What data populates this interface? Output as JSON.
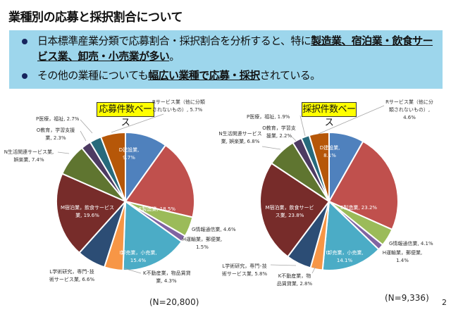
{
  "title": "業種別の応募と採択割合について",
  "summary": {
    "bullets": [
      {
        "plain1": "日本標準産業分類で応募割合・採択割合を分析すると、特に",
        "bold": "製造業、宿泊業・飲食サービス業、卸売・小売業が多い",
        "plain2": "。"
      },
      {
        "plain1": "その他の業種についても",
        "bold": "幅広い業種で応募・採択",
        "plain2": "されている。"
      }
    ]
  },
  "colors": {
    "D": "#4F81BD",
    "E": "#C0504D",
    "G": "#9BBB59",
    "H": "#8064A2",
    "I": "#4BACC6",
    "K": "#F79646",
    "L": "#2C4D75",
    "M": "#772C2A",
    "N": "#5F7530",
    "O": "#4D3B62",
    "P": "#276A7C",
    "R": "#B65708",
    "summary_bg": "#9dd6ec",
    "badge_bg": "#ffff00"
  },
  "chart_data": [
    {
      "type": "pie",
      "title": "応募件数ベース",
      "n_label": "(N=20,800)",
      "start": "top",
      "direction": "clockwise",
      "slices": [
        {
          "key": "D",
          "name": "D建設業",
          "value": 9.7,
          "label": [
            "D建設業,",
            "9.7%"
          ]
        },
        {
          "key": "E",
          "name": "E製造業",
          "value": 18.5,
          "label": [
            "E製造業, 18.5%"
          ]
        },
        {
          "key": "G",
          "name": "G情報通信業",
          "value": 4.6,
          "label": [
            "G情報通信業, 4.6%"
          ]
        },
        {
          "key": "H",
          "name": "H運輸業，郵便業",
          "value": 1.5,
          "label": [
            "H運輸業，郵便業,",
            "1.5%"
          ]
        },
        {
          "key": "I",
          "name": "I卸売業，小売業",
          "value": 15.4,
          "label": [
            "I卸売業，小売業,",
            "15.4%"
          ]
        },
        {
          "key": "K",
          "name": "K不動産業，物品賃貸業",
          "value": 4.3,
          "label": [
            "K不動産業，物品賃貸",
            "業, 4.3%"
          ]
        },
        {
          "key": "L",
          "name": "L学術研究，専門・技術サービス業",
          "value": 6.6,
          "label": [
            "L学術研究，専門･技",
            "術サービス業, 6.6%"
          ]
        },
        {
          "key": "M",
          "name": "M宿泊業，飲食サービス業",
          "value": 19.6,
          "label": [
            "M宿泊業，飲食サービス",
            "業, 19.6%"
          ]
        },
        {
          "key": "N",
          "name": "N生活関連サービス業，娯楽業",
          "value": 7.4,
          "label": [
            "N生活関連サービス業,",
            "娯楽業, 7.4%"
          ]
        },
        {
          "key": "O",
          "name": "O教育，学習支援業",
          "value": 2.3,
          "label": [
            "O教育，学習支援",
            "業, 2.3%"
          ]
        },
        {
          "key": "P",
          "name": "P医療，福祉",
          "value": 2.7,
          "label": [
            "P医療，福祉, 2.7%"
          ]
        },
        {
          "key": "R",
          "name": "Rサービス業（他に分類されないもの）",
          "value": 5.7,
          "label": [
            "Rサービス業（他に分類",
            "されないもの）, 5.7%"
          ]
        }
      ]
    },
    {
      "type": "pie",
      "title": "採択件数ベース",
      "n_label": "(N=9,336)",
      "start": "top",
      "direction": "clockwise",
      "slices": [
        {
          "key": "D",
          "name": "D建設業",
          "value": 8.1,
          "label": [
            "D建設業,",
            "8.1%"
          ]
        },
        {
          "key": "E",
          "name": "E製造業",
          "value": 23.2,
          "label": [
            "E製造業, 23.2%"
          ]
        },
        {
          "key": "G",
          "name": "G情報通信業",
          "value": 4.1,
          "label": [
            "G情報通信業, 4.1%"
          ]
        },
        {
          "key": "H",
          "name": "H運輸業，郵便業",
          "value": 1.4,
          "label": [
            "H運輸業，郵便業,",
            "1.4%"
          ]
        },
        {
          "key": "I",
          "name": "I卸売業，小売業",
          "value": 14.1,
          "label": [
            "I卸売業，小売業,",
            "14.1%"
          ]
        },
        {
          "key": "K",
          "name": "K不動産業，物品賃貸業",
          "value": 2.8,
          "label": [
            "K不動産業，物",
            "品賃貸業, 2.8%"
          ]
        },
        {
          "key": "L",
          "name": "L学術研究，専門・技術サービス業",
          "value": 5.8,
          "label": [
            "L学術研究，専門･技",
            "術サービス業, 5.8%"
          ]
        },
        {
          "key": "M",
          "name": "M宿泊業，飲食サービス業",
          "value": 23.8,
          "label": [
            "M宿泊業，飲食サービ",
            "ス業, 23.8%"
          ]
        },
        {
          "key": "N",
          "name": "N生活関連サービス業，娯楽業",
          "value": 6.8,
          "label": [
            "N生活関連サービス",
            "業, 娯楽業, 6.8%"
          ]
        },
        {
          "key": "O",
          "name": "O教育，学習支援業",
          "value": 2.2,
          "label": [
            "O教育，学習支",
            "援業, 2.2%"
          ]
        },
        {
          "key": "P",
          "name": "P医療，福祉",
          "value": 1.9,
          "label": [
            "P医療，福祉, 1.9%"
          ]
        },
        {
          "key": "R",
          "name": "Rサービス業（他に分類されないもの）",
          "value": 4.6,
          "label": [
            "Rサービス業（他に分",
            "類されないもの）,",
            "4.6%"
          ]
        }
      ]
    }
  ],
  "page_number": "2"
}
